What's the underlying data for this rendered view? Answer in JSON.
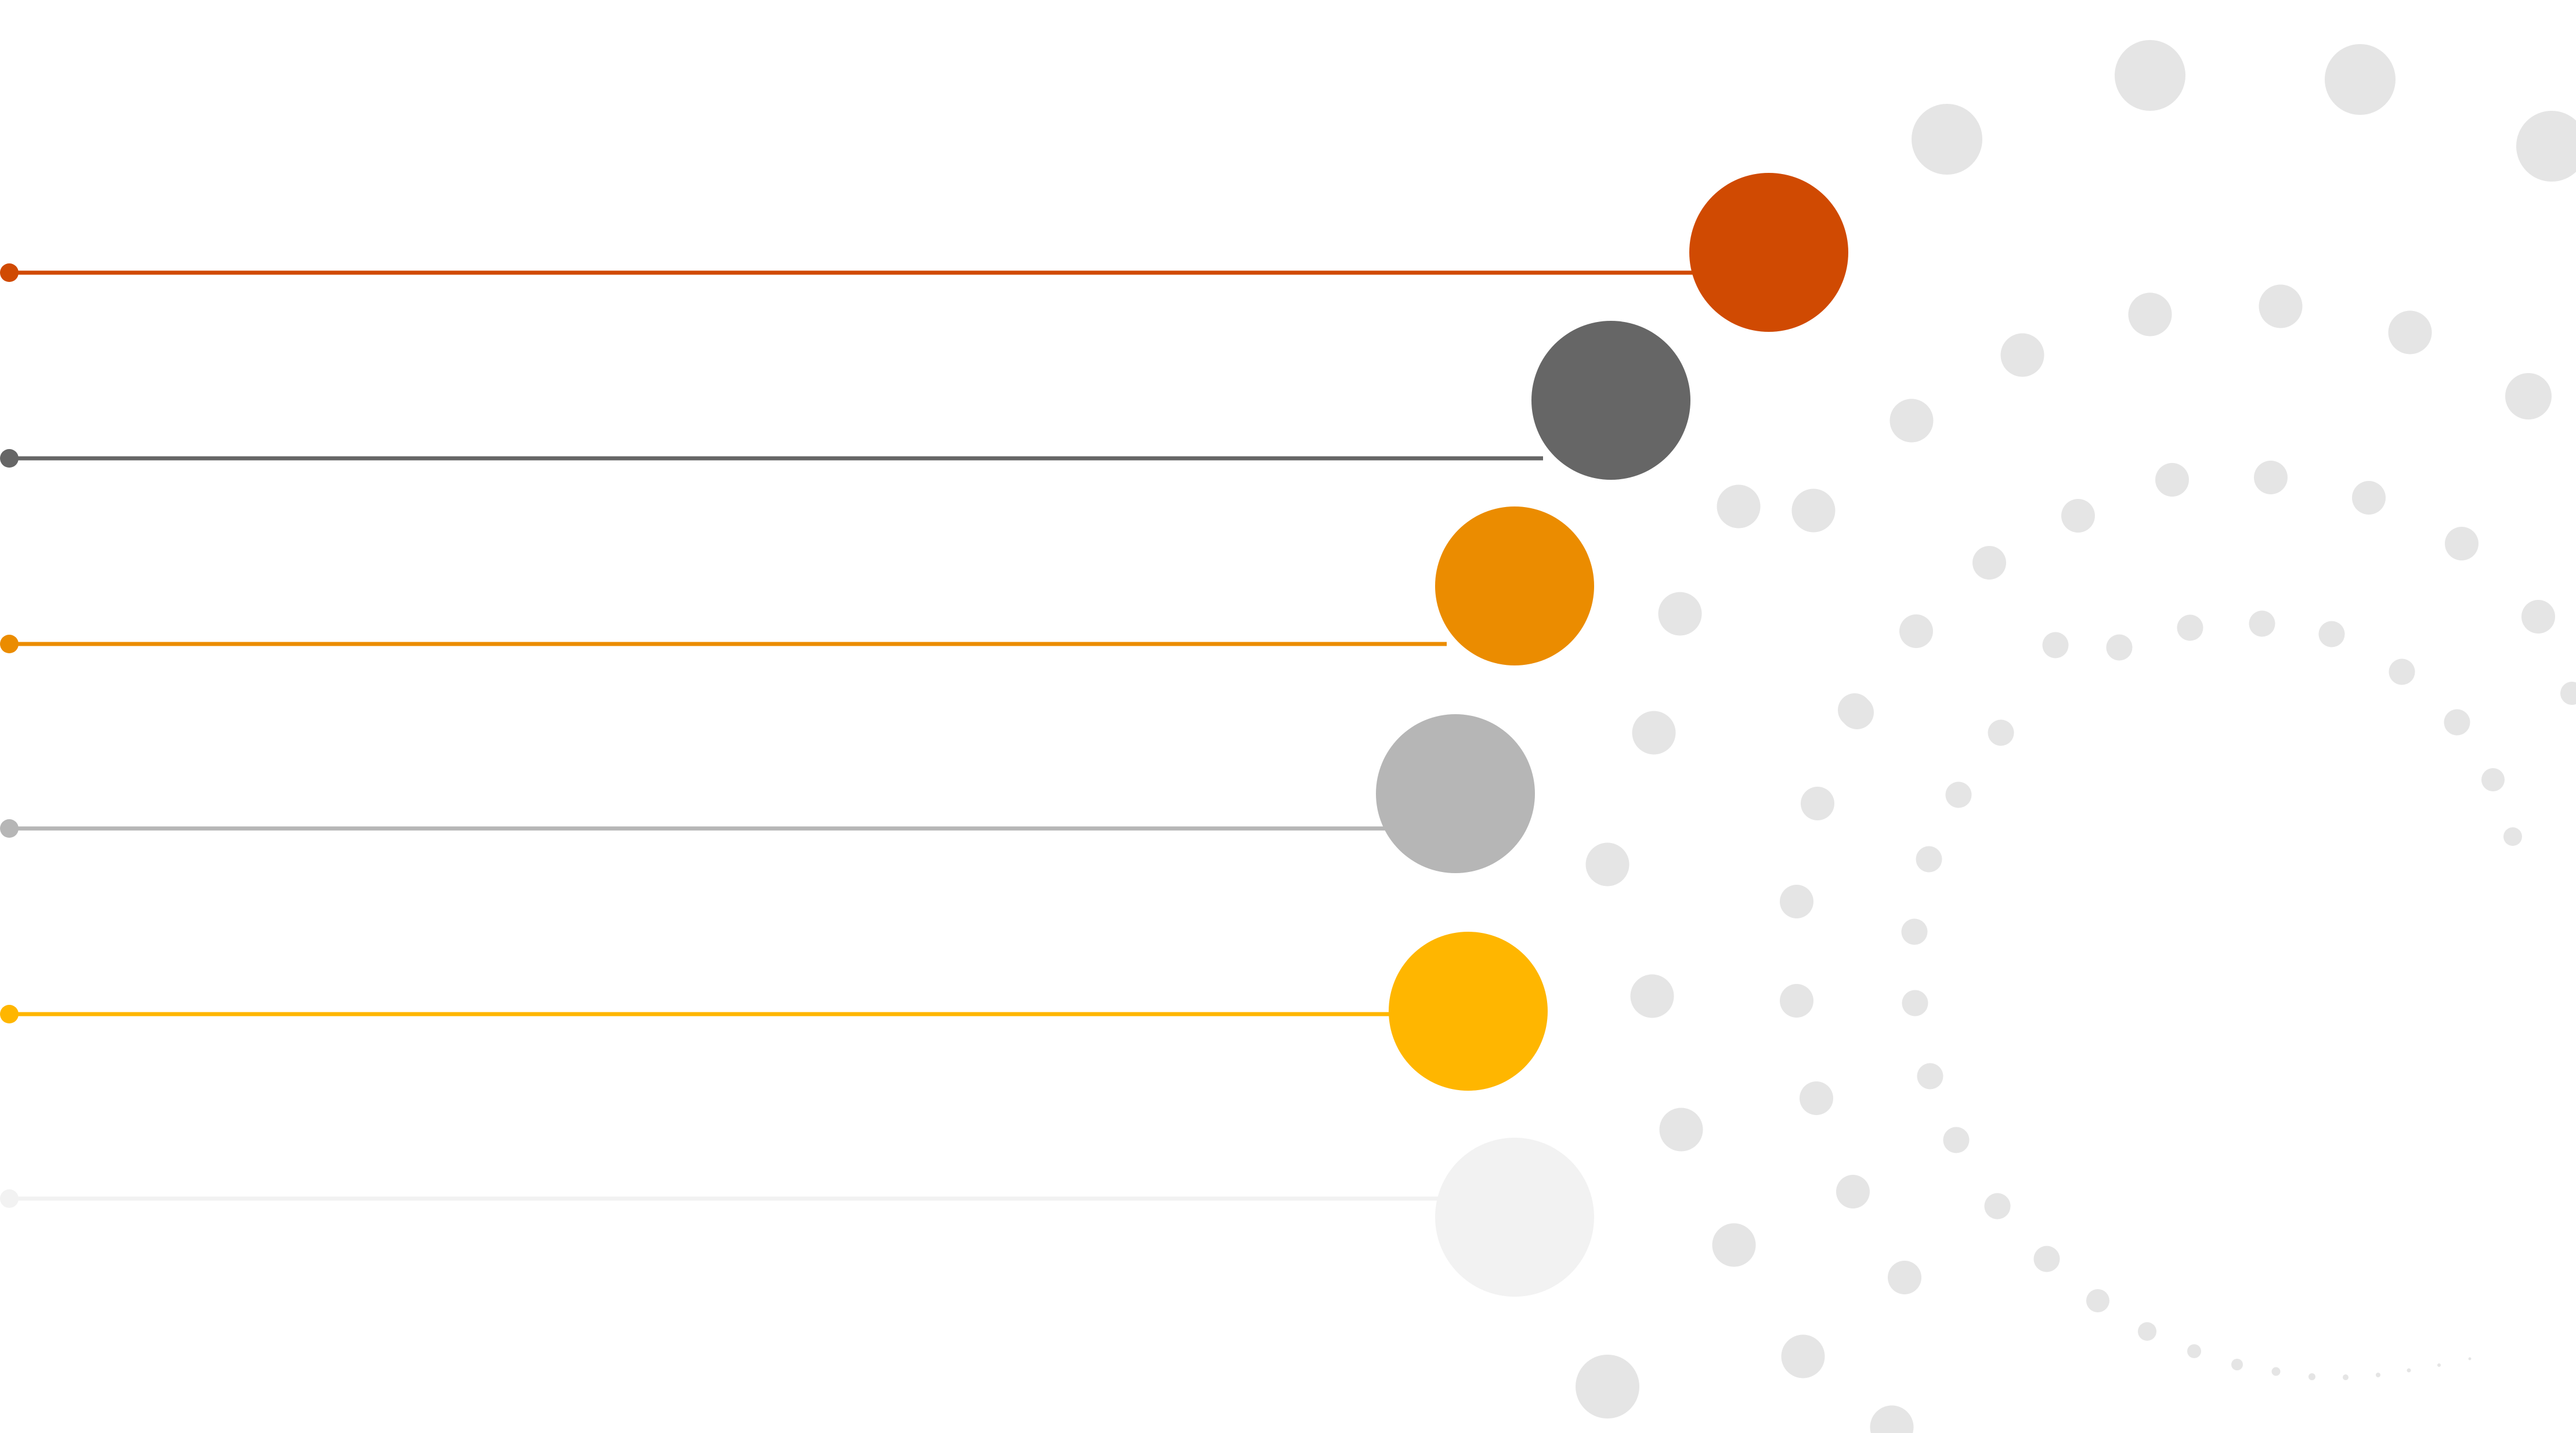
{
  "diagram": {
    "type": "connector-list-with-dotted-arc",
    "text_labels": [],
    "background_color": "#ffffff",
    "dot_pattern_color": "#e5e5e5",
    "items": [
      {
        "name": "item-1",
        "color": "#d04a02"
      },
      {
        "name": "item-2",
        "color": "#666666"
      },
      {
        "name": "item-3",
        "color": "#eb8c00"
      },
      {
        "name": "item-4",
        "color": "#b6b6b6"
      },
      {
        "name": "item-5",
        "color": "#ffb600"
      },
      {
        "name": "item-6",
        "color": "#f2f2f2"
      }
    ]
  }
}
